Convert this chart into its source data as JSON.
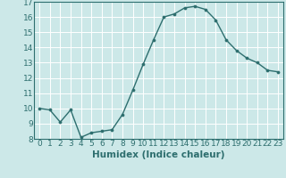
{
  "x": [
    0,
    1,
    2,
    3,
    4,
    5,
    6,
    7,
    8,
    9,
    10,
    11,
    12,
    13,
    14,
    15,
    16,
    17,
    18,
    19,
    20,
    21,
    22,
    23
  ],
  "y": [
    10.0,
    9.9,
    9.1,
    9.9,
    8.1,
    8.4,
    8.5,
    8.6,
    9.6,
    11.2,
    12.9,
    14.5,
    16.0,
    16.2,
    16.6,
    16.7,
    16.5,
    15.8,
    14.5,
    13.8,
    13.3,
    13.0,
    12.5,
    12.4
  ],
  "xlabel": "Humidex (Indice chaleur)",
  "ylim": [
    8,
    17
  ],
  "xlim": [
    -0.5,
    23.5
  ],
  "yticks": [
    8,
    9,
    10,
    11,
    12,
    13,
    14,
    15,
    16,
    17
  ],
  "xticks": [
    0,
    1,
    2,
    3,
    4,
    5,
    6,
    7,
    8,
    9,
    10,
    11,
    12,
    13,
    14,
    15,
    16,
    17,
    18,
    19,
    20,
    21,
    22,
    23
  ],
  "line_color": "#2d6e6e",
  "marker_color": "#2d6e6e",
  "bg_color": "#cce8e8",
  "grid_color": "#ffffff",
  "tick_color": "#2d6e6e",
  "spine_color": "#2d6e6e",
  "tick_label_fontsize": 6.5,
  "xlabel_fontsize": 7.5
}
